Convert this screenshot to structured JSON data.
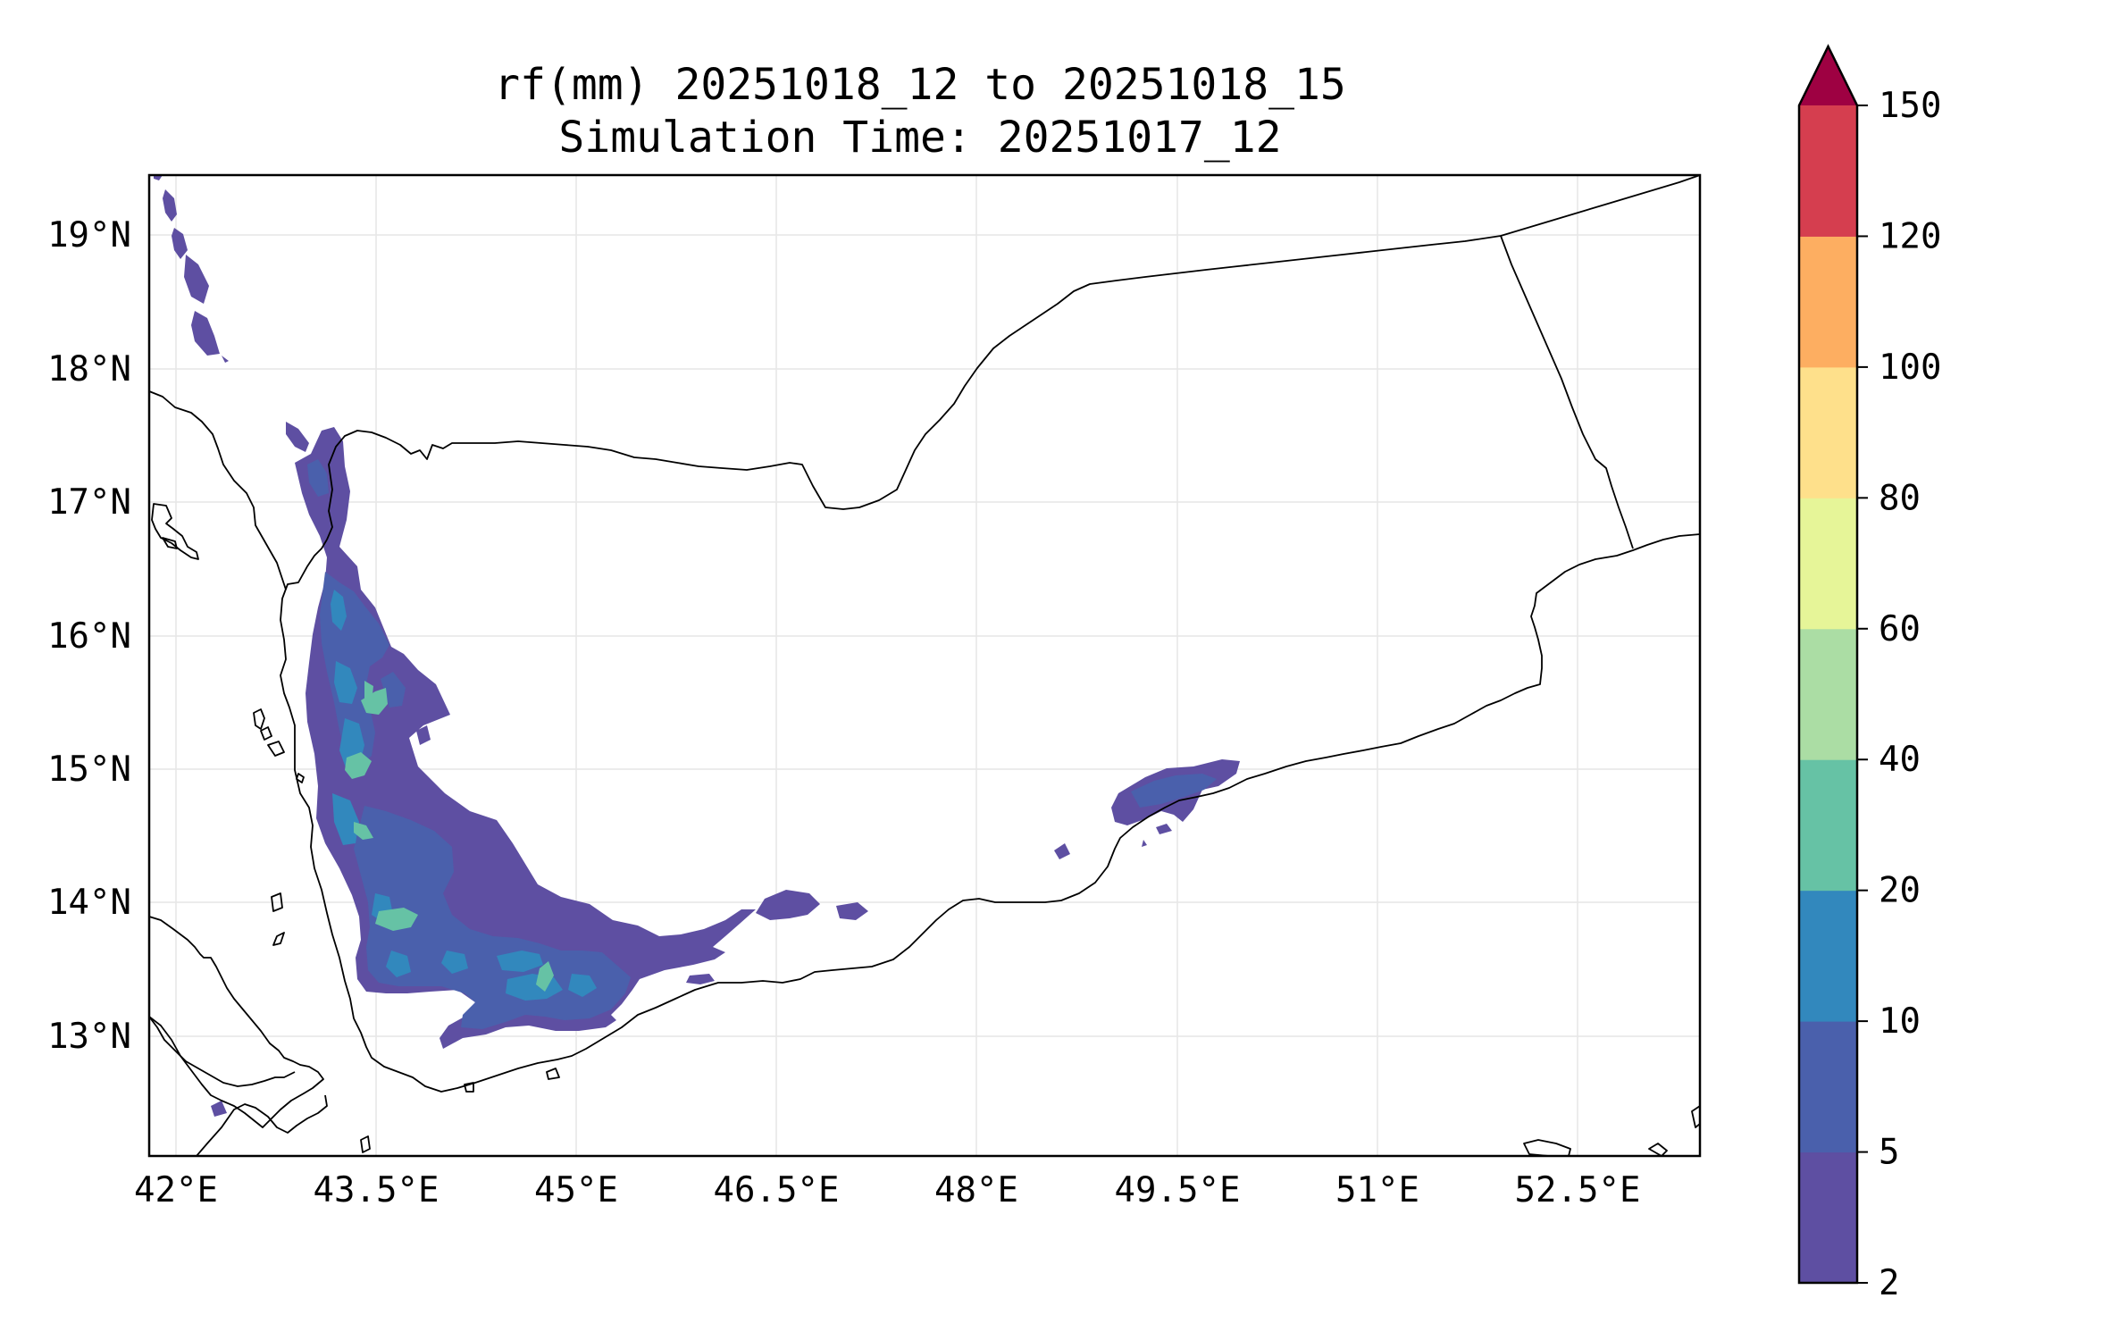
{
  "figure": {
    "title_line1": "rf(mm) 20251018_12 to 20251018_15",
    "title_line2": "Simulation Time: 20251017_12"
  },
  "map": {
    "lon_range": [
      41.95,
      53.4
    ],
    "lat_range": [
      12.1,
      19.45
    ],
    "x_ticks": [
      "42°E",
      "43.5°E",
      "45°E",
      "46.5°E",
      "48°E",
      "49.5°E",
      "51°E",
      "52.5°E"
    ],
    "y_ticks": [
      "19°N",
      "18°N",
      "17°N",
      "16°N",
      "15°N",
      "14°N",
      "13°N"
    ],
    "gridlines": true
  },
  "colorbar": {
    "levels": [
      "2",
      "5",
      "10",
      "20",
      "40",
      "60",
      "80",
      "100",
      "120",
      "150"
    ],
    "colors": [
      "#5e4fa2",
      "#4a60ac",
      "#3288bd",
      "#66c2a5",
      "#abdda4",
      "#e6f598",
      "#fee08b",
      "#fdae61",
      "#d53e4f",
      "#9e0142"
    ],
    "extend": "max"
  }
}
